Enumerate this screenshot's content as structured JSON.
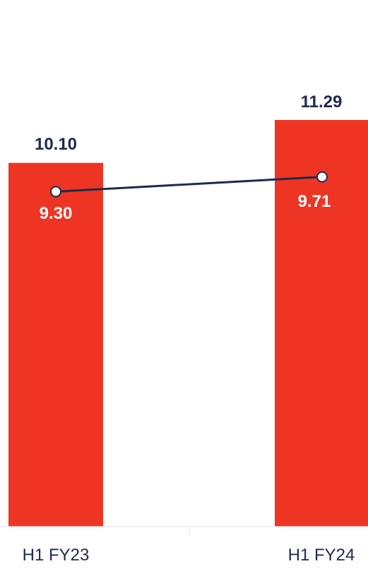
{
  "chart_data": {
    "type": "bar",
    "categories": [
      "H1 FY23",
      "H1 FY24"
    ],
    "series": [
      {
        "type": "bar",
        "values": [
          10.1,
          11.29
        ],
        "labels": [
          "10.10",
          "11.29"
        ],
        "color": "#ee3524"
      },
      {
        "type": "line",
        "values": [
          9.3,
          9.71
        ],
        "labels": [
          "9.30",
          "9.71"
        ],
        "color": "#1d2b4f"
      }
    ],
    "ylim": [
      0,
      11.29
    ],
    "grid": false,
    "title": "",
    "xlabel": "",
    "ylabel": ""
  }
}
